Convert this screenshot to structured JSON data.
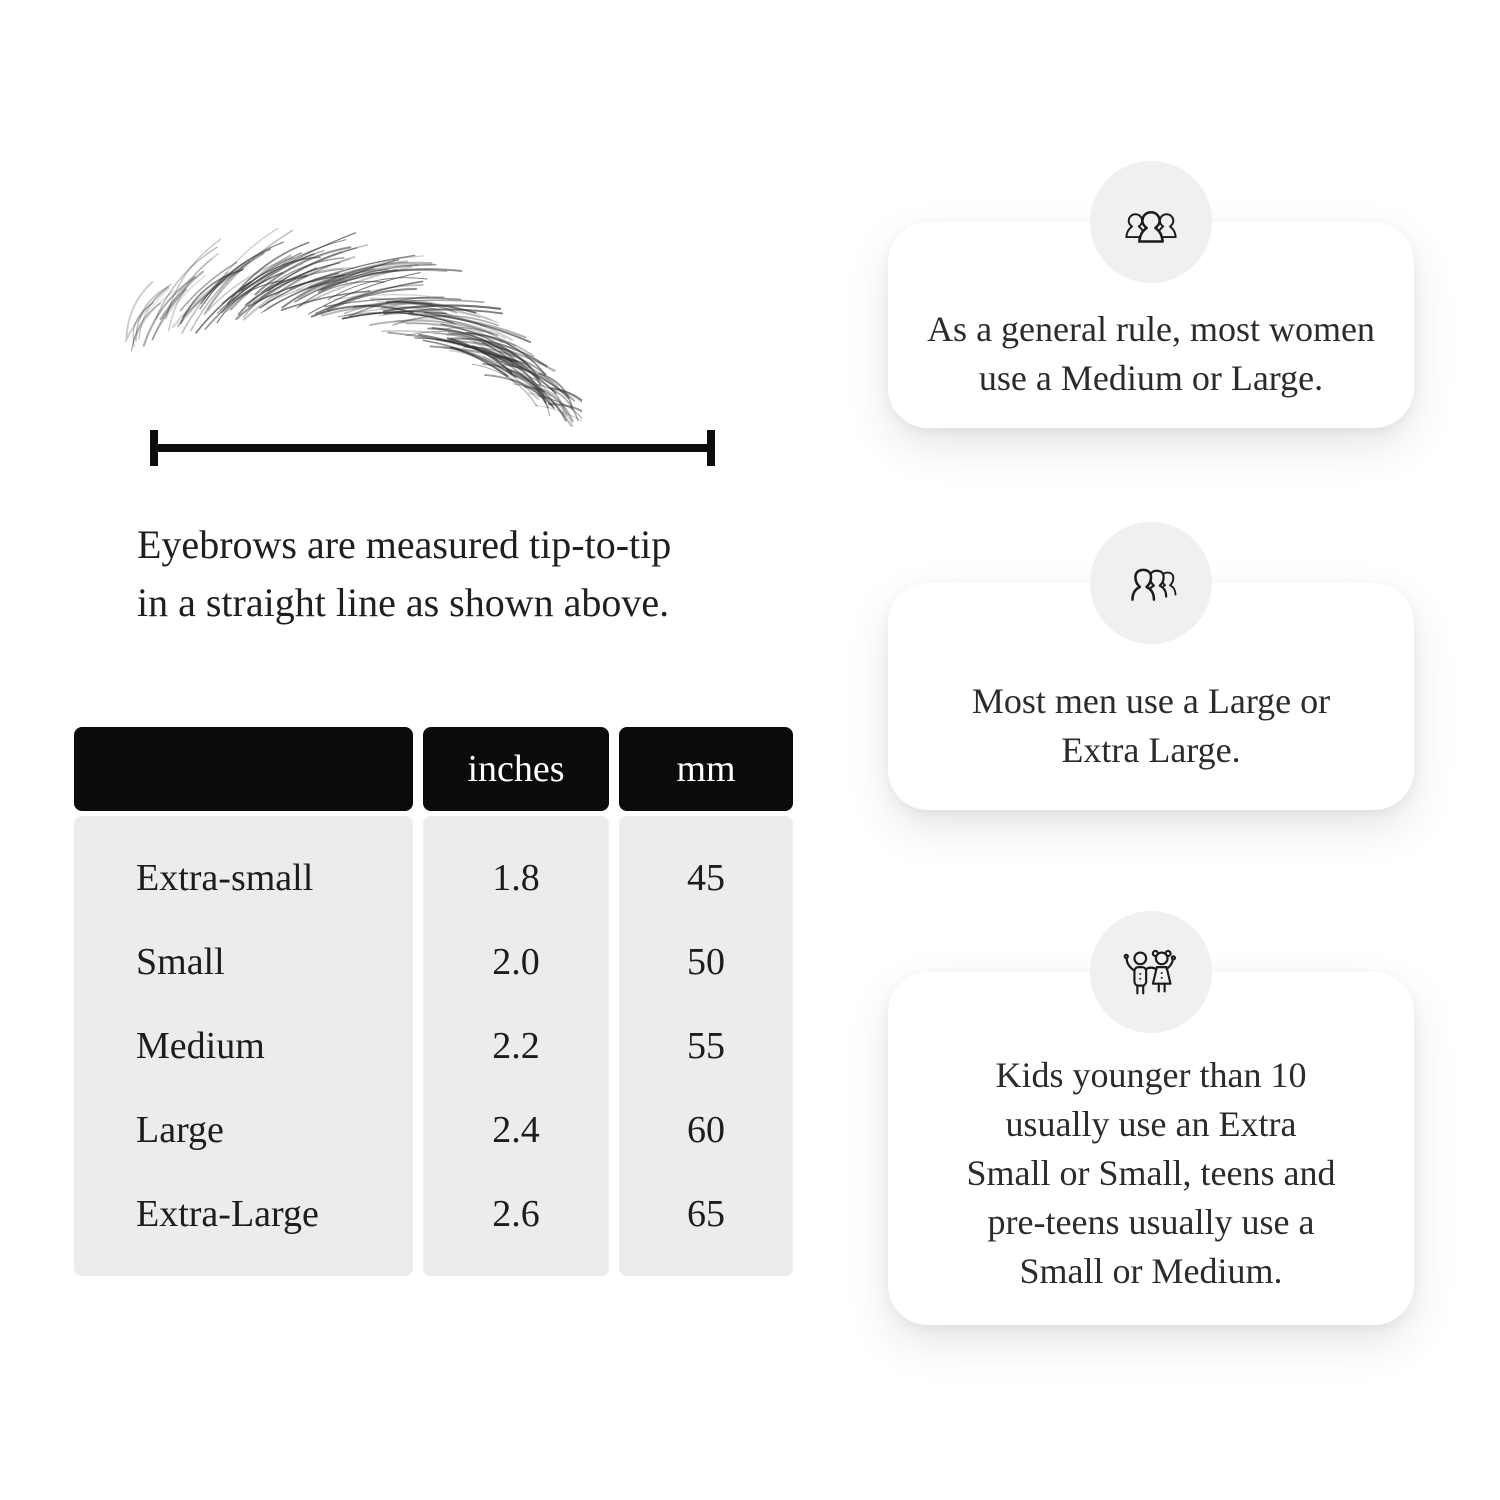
{
  "measurement": {
    "caption_lines": [
      "Eyebrows are measured tip-to-tip",
      "in a straight line as shown above."
    ]
  },
  "table": {
    "headers": [
      "",
      "inches",
      "mm"
    ],
    "rows": [
      {
        "label": "Extra-small",
        "inches": "1.8",
        "mm": "45"
      },
      {
        "label": "Small",
        "inches": "2.0",
        "mm": "50"
      },
      {
        "label": "Medium",
        "inches": "2.2",
        "mm": "55"
      },
      {
        "label": "Large",
        "inches": "2.4",
        "mm": "60"
      },
      {
        "label": "Extra-Large",
        "inches": "2.6",
        "mm": "65"
      }
    ]
  },
  "cards": [
    {
      "icon": "women-group-icon",
      "lines": [
        "As a general rule, most women",
        "use a Medium or Large."
      ]
    },
    {
      "icon": "men-group-icon",
      "lines": [
        "Most men use a Large or",
        "Extra Large."
      ]
    },
    {
      "icon": "kids-icon",
      "lines": [
        "Kids younger than 10",
        "usually use an Extra",
        "Small or Small, teens and",
        "pre-teens usually use a",
        "Small or Medium."
      ]
    }
  ],
  "colors": {
    "header_bg": "#0b0b0b",
    "header_text": "#ffffff",
    "cell_bg": "#ececec",
    "badge_bg": "#f0f0f0",
    "card_bg": "#ffffff",
    "ink": "#1d1d1d"
  }
}
